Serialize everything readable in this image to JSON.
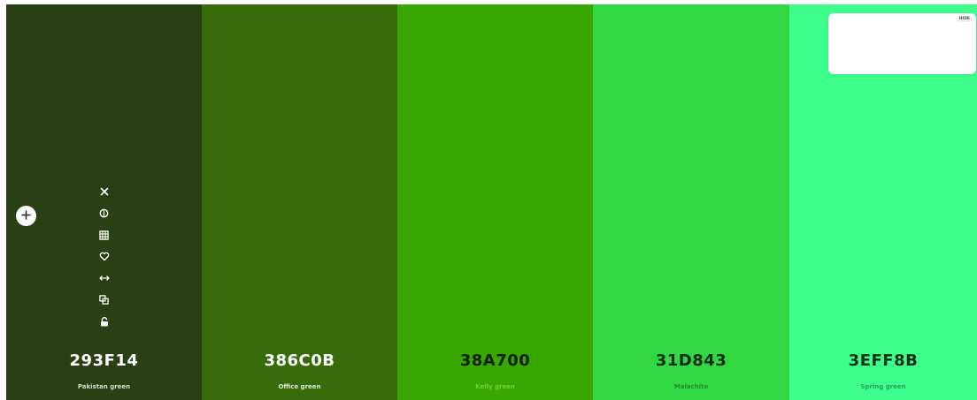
{
  "swatches": [
    {
      "hex": "293F14",
      "name": "Pakistan green",
      "bg": "#293F14",
      "text_color": "#ffffff",
      "name_color": "#d6dcd0"
    },
    {
      "hex": "386C0B",
      "name": "Office green",
      "bg": "#386C0B",
      "text_color": "#ffffff",
      "name_color": "#dfe8d6"
    },
    {
      "hex": "38A700",
      "name": "Kelly green",
      "bg": "#38A700",
      "text_color": "#0d1f00",
      "name_color": "#6fcf3d"
    },
    {
      "hex": "31D843",
      "name": "Malachite",
      "bg": "#31D843",
      "text_color": "#0b2b0e",
      "name_color": "#1f8f2a"
    },
    {
      "hex": "3EFF8B",
      "name": "Spring green",
      "bg": "#3EFF8B",
      "text_color": "#0b2f18",
      "name_color": "#22a955"
    }
  ],
  "toolbar": {
    "icons": [
      "close-icon",
      "contrast-icon",
      "grid-icon",
      "heart-icon",
      "drag-horizontal-icon",
      "copy-icon",
      "lock-icon"
    ]
  },
  "add_button": {
    "icon": "plus-icon"
  },
  "hint": {
    "hide_label": "HIDE"
  }
}
